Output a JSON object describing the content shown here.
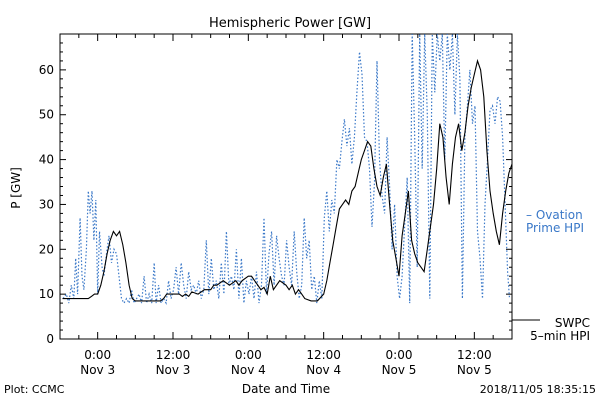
{
  "chart_data": {
    "type": "line",
    "title": "Hemispheric Power [GW]",
    "xlabel": "Date and Time",
    "ylabel": "P [GW]",
    "ylim": [
      0,
      68
    ],
    "xlim_hours": [
      -6,
      66
    ],
    "y_ticks": [
      0,
      10,
      20,
      30,
      40,
      50,
      60
    ],
    "x_ticks": [
      {
        "h": 0,
        "time": "0:00",
        "date": "Nov 3"
      },
      {
        "h": 12,
        "time": "12:00",
        "date": "Nov 3"
      },
      {
        "h": 24,
        "time": "0:00",
        "date": "Nov 4"
      },
      {
        "h": 36,
        "time": "12:00",
        "date": "Nov 4"
      },
      {
        "h": 48,
        "time": "0:00",
        "date": "Nov 5"
      },
      {
        "h": 60,
        "time": "12:00",
        "date": "Nov 5"
      }
    ],
    "grid": false,
    "series": [
      {
        "name": "Ovation Prime HPI",
        "label_lines": [
          "– Ovation",
          "Prime HPI"
        ],
        "color": "#3a78c8",
        "style": "dotted",
        "points": [
          [
            -5.5,
            9
          ],
          [
            -5,
            10
          ],
          [
            -4.6,
            8
          ],
          [
            -4.2,
            12
          ],
          [
            -3.8,
            9
          ],
          [
            -3.5,
            18
          ],
          [
            -3.2,
            10
          ],
          [
            -2.8,
            27
          ],
          [
            -2.5,
            14
          ],
          [
            -2.2,
            11
          ],
          [
            -1.8,
            20
          ],
          [
            -1.5,
            33
          ],
          [
            -1.2,
            28
          ],
          [
            -0.9,
            33
          ],
          [
            -0.6,
            22
          ],
          [
            -0.3,
            31
          ],
          [
            0,
            10
          ],
          [
            0.3,
            24
          ],
          [
            0.7,
            16
          ],
          [
            1,
            14
          ],
          [
            1.4,
            19
          ],
          [
            1.8,
            23
          ],
          [
            2.2,
            17
          ],
          [
            2.6,
            20
          ],
          [
            3,
            19
          ],
          [
            3.4,
            14
          ],
          [
            3.8,
            9
          ],
          [
            4.2,
            8
          ],
          [
            4.6,
            9
          ],
          [
            5,
            8
          ],
          [
            5.4,
            11
          ],
          [
            5.8,
            8
          ],
          [
            6.2,
            9
          ],
          [
            6.6,
            10
          ],
          [
            7,
            8
          ],
          [
            7.4,
            14
          ],
          [
            7.8,
            8
          ],
          [
            8.2,
            10
          ],
          [
            8.6,
            8
          ],
          [
            9,
            17
          ],
          [
            9.3,
            8
          ],
          [
            9.7,
            12
          ],
          [
            10.1,
            8
          ],
          [
            10.5,
            9
          ],
          [
            10.9,
            8
          ],
          [
            11.3,
            13
          ],
          [
            11.7,
            9
          ],
          [
            12.1,
            11
          ],
          [
            12.5,
            16
          ],
          [
            12.9,
            10
          ],
          [
            13.3,
            17
          ],
          [
            13.7,
            12
          ],
          [
            14.1,
            9
          ],
          [
            14.5,
            15
          ],
          [
            14.9,
            11
          ],
          [
            15.3,
            12
          ],
          [
            15.7,
            10
          ],
          [
            16.1,
            13
          ],
          [
            16.5,
            9
          ],
          [
            16.9,
            11
          ],
          [
            17.3,
            22
          ],
          [
            17.7,
            10
          ],
          [
            18.1,
            18
          ],
          [
            18.5,
            11
          ],
          [
            18.9,
            13
          ],
          [
            19.3,
            9
          ],
          [
            19.7,
            17
          ],
          [
            20.1,
            10
          ],
          [
            20.5,
            24
          ],
          [
            20.9,
            12
          ],
          [
            21.3,
            14
          ],
          [
            21.7,
            11
          ],
          [
            22.1,
            20
          ],
          [
            22.5,
            9
          ],
          [
            22.9,
            18
          ],
          [
            23.3,
            8
          ],
          [
            23.7,
            13
          ],
          [
            24.1,
            10
          ],
          [
            24.5,
            14
          ],
          [
            24.9,
            9
          ],
          [
            25.3,
            15
          ],
          [
            25.7,
            8
          ],
          [
            26.1,
            12
          ],
          [
            26.5,
            27
          ],
          [
            26.9,
            10
          ],
          [
            27.3,
            19
          ],
          [
            27.7,
            24
          ],
          [
            28.1,
            12
          ],
          [
            28.5,
            23
          ],
          [
            28.9,
            18
          ],
          [
            29.3,
            14
          ],
          [
            29.7,
            12
          ],
          [
            30.1,
            22
          ],
          [
            30.5,
            16
          ],
          [
            30.9,
            12
          ],
          [
            31.3,
            24
          ],
          [
            31.7,
            15
          ],
          [
            32.1,
            9
          ],
          [
            32.5,
            12
          ],
          [
            32.9,
            27
          ],
          [
            33.3,
            18
          ],
          [
            33.7,
            22
          ],
          [
            34.1,
            11
          ],
          [
            34.5,
            14
          ],
          [
            34.9,
            8
          ],
          [
            35.3,
            13
          ],
          [
            35.7,
            9
          ],
          [
            36.1,
            27
          ],
          [
            36.5,
            33
          ],
          [
            36.9,
            24
          ],
          [
            37.3,
            31
          ],
          [
            37.7,
            28
          ],
          [
            38.1,
            40
          ],
          [
            38.5,
            38
          ],
          [
            38.9,
            44
          ],
          [
            39.3,
            49
          ],
          [
            39.7,
            43
          ],
          [
            40.1,
            47
          ],
          [
            40.5,
            39
          ],
          [
            40.9,
            45
          ],
          [
            41.3,
            55
          ],
          [
            41.7,
            64
          ],
          [
            42.1,
            59
          ],
          [
            42.5,
            45
          ],
          [
            42.9,
            44
          ],
          [
            43.3,
            38
          ],
          [
            43.7,
            25
          ],
          [
            44.1,
            35
          ],
          [
            44.5,
            62
          ],
          [
            44.9,
            40
          ],
          [
            45.3,
            32
          ],
          [
            45.7,
            28
          ],
          [
            46.1,
            45
          ],
          [
            46.5,
            34
          ],
          [
            46.9,
            20
          ],
          [
            47.3,
            30
          ],
          [
            47.7,
            14
          ],
          [
            48.1,
            9
          ],
          [
            48.5,
            14
          ],
          [
            48.9,
            25
          ],
          [
            49.3,
            36
          ],
          [
            49.7,
            8
          ],
          [
            50.1,
            68
          ],
          [
            50.5,
            45
          ],
          [
            50.9,
            16
          ],
          [
            51.3,
            68
          ],
          [
            51.7,
            38
          ],
          [
            52.1,
            68
          ],
          [
            52.5,
            50
          ],
          [
            52.9,
            9
          ],
          [
            53.3,
            68
          ],
          [
            53.7,
            55
          ],
          [
            54.1,
            68
          ],
          [
            54.5,
            62
          ],
          [
            54.9,
            68
          ],
          [
            55.3,
            40
          ],
          [
            55.7,
            68
          ],
          [
            56.1,
            60
          ],
          [
            56.5,
            68
          ],
          [
            56.9,
            50
          ],
          [
            57.3,
            68
          ],
          [
            57.7,
            58
          ],
          [
            58.1,
            9
          ],
          [
            58.5,
            45
          ],
          [
            58.9,
            52
          ],
          [
            59.3,
            60
          ],
          [
            59.7,
            48
          ],
          [
            60.1,
            52
          ],
          [
            60.5,
            24
          ],
          [
            60.9,
            18
          ],
          [
            61.3,
            9
          ],
          [
            61.7,
            30
          ],
          [
            62.1,
            40
          ],
          [
            62.5,
            51
          ],
          [
            62.9,
            52
          ],
          [
            63.3,
            48
          ],
          [
            63.7,
            54
          ],
          [
            64.1,
            53
          ],
          [
            64.5,
            45
          ],
          [
            64.9,
            30
          ],
          [
            65.3,
            15
          ],
          [
            65.6,
            9
          ]
        ]
      },
      {
        "name": "SWPC 5-min HPI",
        "label_lines": [
          "SWPC",
          "5–min HPI"
        ],
        "color": "#000000",
        "style": "solid",
        "points": [
          [
            -5.6,
            9
          ],
          [
            -4,
            9
          ],
          [
            -2.5,
            9
          ],
          [
            -1.5,
            9
          ],
          [
            -1,
            9.5
          ],
          [
            -0.5,
            10
          ],
          [
            0,
            10
          ],
          [
            0.5,
            12
          ],
          [
            1,
            15
          ],
          [
            1.5,
            19
          ],
          [
            2,
            22
          ],
          [
            2.5,
            24
          ],
          [
            3,
            23
          ],
          [
            3.5,
            24
          ],
          [
            4,
            21
          ],
          [
            4.5,
            17
          ],
          [
            5,
            12
          ],
          [
            5.5,
            9
          ],
          [
            6,
            8.5
          ],
          [
            8,
            8.5
          ],
          [
            10,
            8.5
          ],
          [
            10.5,
            9
          ],
          [
            11,
            10
          ],
          [
            12,
            10
          ],
          [
            13,
            10
          ],
          [
            13.5,
            9.5
          ],
          [
            14,
            10
          ],
          [
            14.5,
            9.5
          ],
          [
            15,
            10.5
          ],
          [
            16,
            10
          ],
          [
            17,
            11
          ],
          [
            18,
            11
          ],
          [
            18.5,
            12
          ],
          [
            19,
            12
          ],
          [
            20,
            13
          ],
          [
            21,
            12
          ],
          [
            22,
            13
          ],
          [
            22.5,
            12
          ],
          [
            23,
            13
          ],
          [
            24,
            14
          ],
          [
            24.5,
            14
          ],
          [
            25,
            13
          ],
          [
            25.5,
            12
          ],
          [
            26,
            11
          ],
          [
            26.5,
            11.5
          ],
          [
            27,
            10
          ],
          [
            27.5,
            14
          ],
          [
            28,
            11
          ],
          [
            29,
            13
          ],
          [
            30,
            12
          ],
          [
            30.5,
            11
          ],
          [
            31,
            12
          ],
          [
            31.5,
            10
          ],
          [
            32,
            11
          ],
          [
            32.5,
            10
          ],
          [
            33,
            9
          ],
          [
            34,
            8.5
          ],
          [
            35,
            8.5
          ],
          [
            36,
            10
          ],
          [
            36.5,
            13
          ],
          [
            37,
            17
          ],
          [
            37.5,
            21
          ],
          [
            38,
            25
          ],
          [
            38.5,
            29
          ],
          [
            39,
            30
          ],
          [
            39.5,
            31
          ],
          [
            40,
            30
          ],
          [
            40.5,
            33
          ],
          [
            41,
            34
          ],
          [
            41.5,
            37
          ],
          [
            42,
            40
          ],
          [
            42.5,
            42
          ],
          [
            43,
            44
          ],
          [
            43.5,
            43
          ],
          [
            44,
            38
          ],
          [
            44.5,
            34
          ],
          [
            45,
            32
          ],
          [
            45.5,
            36
          ],
          [
            46,
            39
          ],
          [
            46.5,
            30
          ],
          [
            47,
            22
          ],
          [
            47.5,
            18
          ],
          [
            48,
            14
          ],
          [
            48.5,
            23
          ],
          [
            49,
            28
          ],
          [
            49.5,
            33
          ],
          [
            50,
            22
          ],
          [
            50.5,
            19
          ],
          [
            51,
            17
          ],
          [
            51.5,
            16
          ],
          [
            52,
            15
          ],
          [
            52.5,
            20
          ],
          [
            53,
            25
          ],
          [
            53.5,
            30
          ],
          [
            54,
            38
          ],
          [
            54.5,
            48
          ],
          [
            55,
            45
          ],
          [
            55.5,
            36
          ],
          [
            56,
            30
          ],
          [
            56.5,
            39
          ],
          [
            57,
            45
          ],
          [
            57.5,
            48
          ],
          [
            58,
            42
          ],
          [
            58.5,
            46
          ],
          [
            59,
            52
          ],
          [
            59.5,
            56
          ],
          [
            60,
            59
          ],
          [
            60.5,
            62
          ],
          [
            61,
            60
          ],
          [
            61.5,
            54
          ],
          [
            62,
            42
          ],
          [
            62.5,
            33
          ],
          [
            63,
            28
          ],
          [
            63.5,
            24
          ],
          [
            64,
            21
          ],
          [
            64.5,
            28
          ],
          [
            65,
            33
          ],
          [
            65.5,
            37
          ],
          [
            66,
            39
          ]
        ]
      }
    ]
  },
  "footer": {
    "plot_credit": "Plot: CCMC",
    "timestamp": "2018/11/05 18:35:15"
  }
}
